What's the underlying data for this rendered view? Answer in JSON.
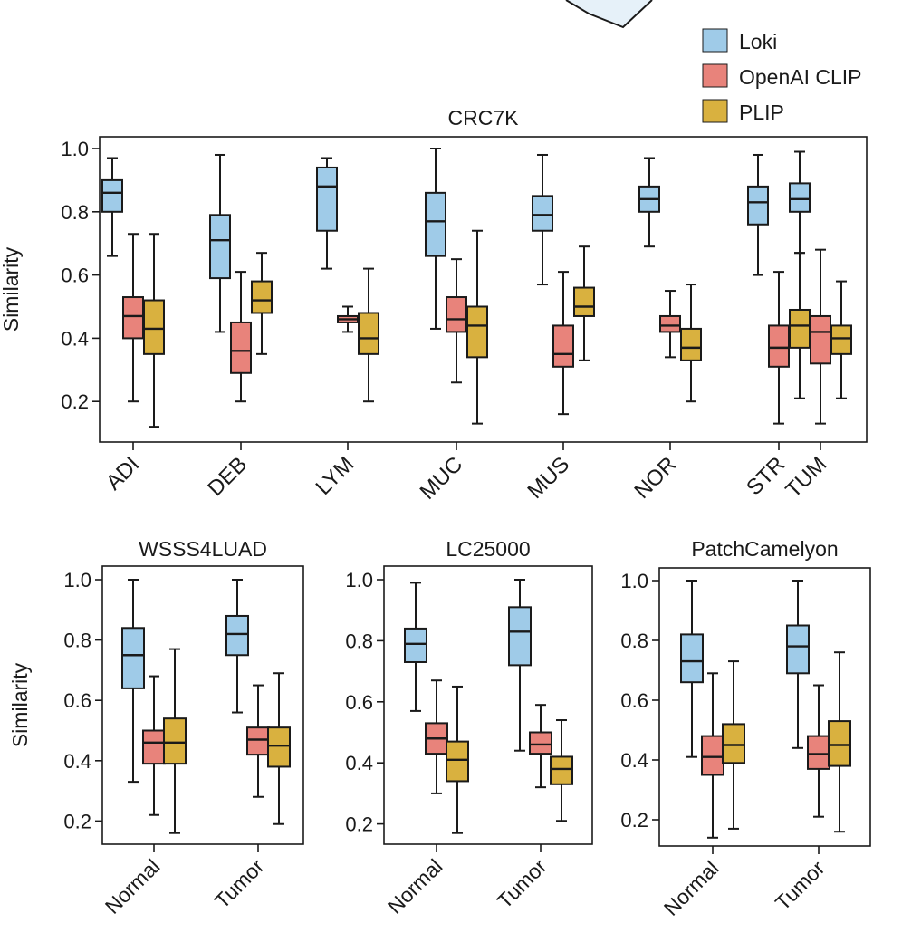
{
  "legend": {
    "items": [
      {
        "label": "Loki",
        "color": "#9fcbe8"
      },
      {
        "label": "OpenAI CLIP",
        "color": "#e8837b"
      },
      {
        "label": "PLIP",
        "color": "#d9b13f"
      }
    ]
  },
  "chart_data": [
    {
      "type": "box",
      "title": "CRC7K",
      "ylabel": "Similarity",
      "ylim": [
        0.1,
        1.05
      ],
      "yticks": [
        "0.2",
        "0.4",
        "0.6",
        "0.8",
        "1.0"
      ],
      "categories": [
        "ADI",
        "DEB",
        "LYM",
        "MUC",
        "MUS",
        "NOR",
        "STR",
        "TUM"
      ],
      "series": [
        {
          "name": "Loki",
          "boxes": [
            {
              "min": 0.66,
              "q1": 0.8,
              "median": 0.86,
              "q3": 0.9,
              "max": 0.97
            },
            {
              "min": 0.42,
              "q1": 0.59,
              "median": 0.71,
              "q3": 0.79,
              "max": 0.98
            },
            {
              "min": 0.62,
              "q1": 0.74,
              "median": 0.88,
              "q3": 0.94,
              "max": 0.97
            },
            {
              "min": 0.43,
              "q1": 0.66,
              "median": 0.77,
              "q3": 0.86,
              "max": 1.0
            },
            {
              "min": 0.57,
              "q1": 0.74,
              "median": 0.79,
              "q3": 0.85,
              "max": 0.98
            },
            {
              "min": 0.69,
              "q1": 0.8,
              "median": 0.84,
              "q3": 0.88,
              "max": 0.97
            },
            {
              "min": 0.6,
              "q1": 0.76,
              "median": 0.83,
              "q3": 0.88,
              "max": 0.98
            },
            {
              "min": 0.67,
              "q1": 0.8,
              "median": 0.84,
              "q3": 0.89,
              "max": 0.99
            }
          ]
        },
        {
          "name": "OpenAI CLIP",
          "boxes": [
            {
              "min": 0.2,
              "q1": 0.4,
              "median": 0.47,
              "q3": 0.53,
              "max": 0.73
            },
            {
              "min": 0.2,
              "q1": 0.29,
              "median": 0.36,
              "q3": 0.45,
              "max": 0.61
            },
            {
              "min": 0.42,
              "q1": 0.45,
              "median": 0.46,
              "q3": 0.47,
              "max": 0.5
            },
            {
              "min": 0.26,
              "q1": 0.42,
              "median": 0.46,
              "q3": 0.53,
              "max": 0.65
            },
            {
              "min": 0.16,
              "q1": 0.31,
              "median": 0.35,
              "q3": 0.44,
              "max": 0.61
            },
            {
              "min": 0.34,
              "q1": 0.42,
              "median": 0.44,
              "q3": 0.47,
              "max": 0.55
            },
            {
              "min": 0.13,
              "q1": 0.31,
              "median": 0.37,
              "q3": 0.44,
              "max": 0.61
            },
            {
              "min": 0.13,
              "q1": 0.32,
              "median": 0.42,
              "q3": 0.47,
              "max": 0.68
            }
          ]
        },
        {
          "name": "PLIP",
          "boxes": [
            {
              "min": 0.12,
              "q1": 0.35,
              "median": 0.43,
              "q3": 0.52,
              "max": 0.73
            },
            {
              "min": 0.35,
              "q1": 0.48,
              "median": 0.52,
              "q3": 0.58,
              "max": 0.67
            },
            {
              "min": 0.2,
              "q1": 0.35,
              "median": 0.4,
              "q3": 0.48,
              "max": 0.62
            },
            {
              "min": 0.13,
              "q1": 0.34,
              "median": 0.44,
              "q3": 0.5,
              "max": 0.74
            },
            {
              "min": 0.33,
              "q1": 0.47,
              "median": 0.5,
              "q3": 0.56,
              "max": 0.69
            },
            {
              "min": 0.2,
              "q1": 0.33,
              "median": 0.37,
              "q3": 0.43,
              "max": 0.57
            },
            {
              "min": 0.21,
              "q1": 0.37,
              "median": 0.44,
              "q3": 0.49,
              "max": 0.67
            },
            {
              "min": 0.21,
              "q1": 0.35,
              "median": 0.4,
              "q3": 0.44,
              "max": 0.58
            }
          ]
        }
      ]
    },
    {
      "type": "box",
      "title": "WSSS4LUAD",
      "ylabel": "Similarity",
      "ylim": [
        0.13,
        1.05
      ],
      "yticks": [
        "0.2",
        "0.4",
        "0.6",
        "0.8",
        "1.0"
      ],
      "categories": [
        "Normal",
        "Tumor"
      ],
      "series": [
        {
          "name": "Loki",
          "boxes": [
            {
              "min": 0.33,
              "q1": 0.64,
              "median": 0.75,
              "q3": 0.84,
              "max": 1.0
            },
            {
              "min": 0.56,
              "q1": 0.75,
              "median": 0.82,
              "q3": 0.88,
              "max": 1.0
            }
          ]
        },
        {
          "name": "OpenAI CLIP",
          "boxes": [
            {
              "min": 0.22,
              "q1": 0.39,
              "median": 0.46,
              "q3": 0.5,
              "max": 0.68
            },
            {
              "min": 0.28,
              "q1": 0.42,
              "median": 0.47,
              "q3": 0.51,
              "max": 0.65
            }
          ]
        },
        {
          "name": "PLIP",
          "boxes": [
            {
              "min": 0.16,
              "q1": 0.39,
              "median": 0.46,
              "q3": 0.54,
              "max": 0.77
            },
            {
              "min": 0.19,
              "q1": 0.38,
              "median": 0.45,
              "q3": 0.51,
              "max": 0.69
            }
          ]
        }
      ]
    },
    {
      "type": "box",
      "title": "LC25000",
      "ylabel": "",
      "ylim": [
        0.13,
        1.05
      ],
      "yticks": [
        "0.2",
        "0.4",
        "0.6",
        "0.8",
        "1.0"
      ],
      "categories": [
        "Normal",
        "Tumor"
      ],
      "series": [
        {
          "name": "Loki",
          "boxes": [
            {
              "min": 0.57,
              "q1": 0.73,
              "median": 0.79,
              "q3": 0.84,
              "max": 0.99
            },
            {
              "min": 0.44,
              "q1": 0.72,
              "median": 0.83,
              "q3": 0.91,
              "max": 1.0
            }
          ]
        },
        {
          "name": "OpenAI CLIP",
          "boxes": [
            {
              "min": 0.3,
              "q1": 0.43,
              "median": 0.48,
              "q3": 0.53,
              "max": 0.67
            },
            {
              "min": 0.32,
              "q1": 0.43,
              "median": 0.46,
              "q3": 0.5,
              "max": 0.59
            }
          ]
        },
        {
          "name": "PLIP",
          "boxes": [
            {
              "min": 0.17,
              "q1": 0.34,
              "median": 0.41,
              "q3": 0.47,
              "max": 0.65
            },
            {
              "min": 0.21,
              "q1": 0.33,
              "median": 0.38,
              "q3": 0.42,
              "max": 0.54
            }
          ]
        }
      ]
    },
    {
      "type": "box",
      "title": "PatchCamelyon",
      "ylabel": "",
      "ylim": [
        0.13,
        1.05
      ],
      "yticks": [
        "0.2",
        "0.4",
        "0.6",
        "0.8",
        "1.0"
      ],
      "categories": [
        "Normal",
        "Tumor"
      ],
      "series": [
        {
          "name": "Loki",
          "boxes": [
            {
              "min": 0.41,
              "q1": 0.66,
              "median": 0.73,
              "q3": 0.82,
              "max": 1.0
            },
            {
              "min": 0.44,
              "q1": 0.69,
              "median": 0.78,
              "q3": 0.85,
              "max": 1.0
            }
          ]
        },
        {
          "name": "OpenAI CLIP",
          "boxes": [
            {
              "min": 0.14,
              "q1": 0.35,
              "median": 0.41,
              "q3": 0.48,
              "max": 0.69
            },
            {
              "min": 0.21,
              "q1": 0.37,
              "median": 0.42,
              "q3": 0.48,
              "max": 0.65
            }
          ]
        },
        {
          "name": "PLIP",
          "boxes": [
            {
              "min": 0.17,
              "q1": 0.39,
              "median": 0.45,
              "q3": 0.52,
              "max": 0.73
            },
            {
              "min": 0.16,
              "q1": 0.38,
              "median": 0.45,
              "q3": 0.53,
              "max": 0.76
            }
          ]
        }
      ]
    }
  ]
}
